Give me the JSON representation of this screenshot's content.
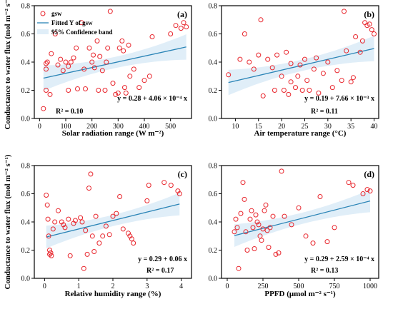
{
  "colors": {
    "points": "#e8242b",
    "fit": "#2a84b6",
    "band": "#d6e8f6"
  },
  "legend": {
    "points": "gsw",
    "fit": "Fitted Y of gsw",
    "band": "95% Confidence band",
    "placement": "top-left of panel (a)"
  },
  "chart_data": [
    {
      "type": "scatter",
      "panel": "(a)",
      "xlabel": "Solar radiation range (W m⁻²)",
      "ylabel": "Conductance to water flux (mol m⁻² s⁻¹)",
      "xlim": [
        -20,
        580
      ],
      "ylim": [
        0.0,
        0.8
      ],
      "xticks": [
        0,
        100,
        200,
        300,
        400,
        500
      ],
      "yticks": [
        0.0,
        0.2,
        0.4,
        0.6,
        0.8
      ],
      "equation": "y = 0.28 + 4.06 × 10⁻⁴ x",
      "r2": "R² = 0.10",
      "fit": {
        "intercept": 0.28,
        "slope": 0.000406
      },
      "band_halfwidth": [
        0.04,
        0.09
      ],
      "points": [
        [
          15,
          0.07
        ],
        [
          25,
          0.2
        ],
        [
          25,
          0.35
        ],
        [
          25,
          0.39
        ],
        [
          30,
          0.4
        ],
        [
          40,
          0.17
        ],
        [
          45,
          0.46
        ],
        [
          60,
          0.6
        ],
        [
          70,
          0.38
        ],
        [
          80,
          0.42
        ],
        [
          90,
          0.34
        ],
        [
          100,
          0.4
        ],
        [
          110,
          0.37
        ],
        [
          110,
          0.2
        ],
        [
          120,
          0.4
        ],
        [
          130,
          0.43
        ],
        [
          140,
          0.5
        ],
        [
          145,
          0.21
        ],
        [
          160,
          0.68
        ],
        [
          170,
          0.35
        ],
        [
          175,
          0.21
        ],
        [
          190,
          0.5
        ],
        [
          200,
          0.4
        ],
        [
          205,
          0.45
        ],
        [
          210,
          0.36
        ],
        [
          220,
          0.55
        ],
        [
          225,
          0.2
        ],
        [
          230,
          0.44
        ],
        [
          240,
          0.34
        ],
        [
          250,
          0.2
        ],
        [
          255,
          0.4
        ],
        [
          260,
          0.5
        ],
        [
          270,
          0.76
        ],
        [
          280,
          0.25
        ],
        [
          290,
          0.17
        ],
        [
          300,
          0.18
        ],
        [
          305,
          0.5
        ],
        [
          315,
          0.55
        ],
        [
          320,
          0.48
        ],
        [
          325,
          0.22
        ],
        [
          330,
          0.18
        ],
        [
          340,
          0.52
        ],
        [
          345,
          0.3
        ],
        [
          360,
          0.35
        ],
        [
          380,
          0.22
        ],
        [
          400,
          0.27
        ],
        [
          420,
          0.3
        ],
        [
          430,
          0.58
        ],
        [
          500,
          0.6
        ],
        [
          520,
          0.66
        ],
        [
          540,
          0.64
        ],
        [
          550,
          0.68
        ],
        [
          560,
          0.65
        ]
      ]
    },
    {
      "type": "scatter",
      "panel": "(b)",
      "xlabel": "Air temperature range (°C)",
      "ylabel": "",
      "xlim": [
        7,
        41
      ],
      "ylim": [
        0.0,
        0.8
      ],
      "xticks": [
        10,
        15,
        20,
        25,
        30,
        35,
        40
      ],
      "yticks": [
        0.0,
        0.2,
        0.4,
        0.6,
        0.8
      ],
      "equation": "y = 0.19 + 7.66 × 10⁻³ x",
      "r2": "R² = 0.11",
      "fit": {
        "intercept": 0.19,
        "slope": 0.00766
      },
      "band_halfwidth": [
        0.04,
        0.09
      ],
      "points": [
        [
          8.5,
          0.31
        ],
        [
          11,
          0.42
        ],
        [
          12,
          0.6
        ],
        [
          13,
          0.4
        ],
        [
          14,
          0.35
        ],
        [
          15,
          0.45
        ],
        [
          15.5,
          0.7
        ],
        [
          16,
          0.16
        ],
        [
          17,
          0.42
        ],
        [
          18,
          0.36
        ],
        [
          18.5,
          0.2
        ],
        [
          19,
          0.45
        ],
        [
          20,
          0.3
        ],
        [
          20.5,
          0.2
        ],
        [
          21,
          0.47
        ],
        [
          21.5,
          0.17
        ],
        [
          22,
          0.39
        ],
        [
          22,
          0.26
        ],
        [
          23,
          0.22
        ],
        [
          23.5,
          0.3
        ],
        [
          24,
          0.38
        ],
        [
          24.5,
          0.2
        ],
        [
          25,
          0.42
        ],
        [
          25.5,
          0.27
        ],
        [
          26,
          0.2
        ],
        [
          27,
          0.35
        ],
        [
          27.5,
          0.43
        ],
        [
          28,
          0.18
        ],
        [
          29,
          0.32
        ],
        [
          30,
          0.4
        ],
        [
          31,
          0.22
        ],
        [
          32,
          0.34
        ],
        [
          33,
          0.27
        ],
        [
          33.5,
          0.76
        ],
        [
          34,
          0.48
        ],
        [
          35,
          0.26
        ],
        [
          35.5,
          0.29
        ],
        [
          36,
          0.58
        ],
        [
          37,
          0.47
        ],
        [
          37.5,
          0.55
        ],
        [
          38,
          0.68
        ],
        [
          38.5,
          0.66
        ],
        [
          39,
          0.67
        ],
        [
          39.5,
          0.63
        ],
        [
          40,
          0.6
        ]
      ]
    },
    {
      "type": "scatter",
      "panel": "(c)",
      "xlabel": "Relative humidity range (%)",
      "ylabel": "Conductance to water flux (mol m⁻² s⁻¹)",
      "xlim": [
        -0.3,
        4.3
      ],
      "ylim": [
        0.0,
        0.8
      ],
      "xticks": [
        0,
        1,
        2,
        3,
        4
      ],
      "yticks": [
        0.0,
        0.2,
        0.4,
        0.6,
        0.8
      ],
      "equation": "y = 0.29 + 0.06 x",
      "r2": "R² = 0.17",
      "fit": {
        "intercept": 0.29,
        "slope": 0.06
      },
      "band_halfwidth": [
        0.04,
        0.08
      ],
      "points": [
        [
          0.05,
          0.59
        ],
        [
          0.08,
          0.52
        ],
        [
          0.1,
          0.42
        ],
        [
          0.12,
          0.3
        ],
        [
          0.15,
          0.2
        ],
        [
          0.15,
          0.17
        ],
        [
          0.18,
          0.18
        ],
        [
          0.2,
          0.16
        ],
        [
          0.25,
          0.35
        ],
        [
          0.3,
          0.4
        ],
        [
          0.4,
          0.48
        ],
        [
          0.5,
          0.4
        ],
        [
          0.55,
          0.38
        ],
        [
          0.6,
          0.36
        ],
        [
          0.7,
          0.42
        ],
        [
          0.75,
          0.16
        ],
        [
          0.85,
          0.39
        ],
        [
          0.9,
          0.41
        ],
        [
          1.05,
          0.43
        ],
        [
          1.1,
          0.4
        ],
        [
          1.15,
          0.07
        ],
        [
          1.2,
          0.34
        ],
        [
          1.25,
          0.17
        ],
        [
          1.3,
          0.64
        ],
        [
          1.35,
          0.74
        ],
        [
          1.4,
          0.3
        ],
        [
          1.45,
          0.19
        ],
        [
          1.5,
          0.44
        ],
        [
          1.6,
          0.25
        ],
        [
          1.7,
          0.3
        ],
        [
          1.8,
          0.37
        ],
        [
          1.9,
          0.31
        ],
        [
          2.0,
          0.44
        ],
        [
          2.1,
          0.46
        ],
        [
          2.2,
          0.58
        ],
        [
          2.3,
          0.35
        ],
        [
          2.45,
          0.32
        ],
        [
          2.5,
          0.3
        ],
        [
          2.55,
          0.28
        ],
        [
          2.6,
          0.25
        ],
        [
          3.0,
          0.55
        ],
        [
          3.05,
          0.66
        ],
        [
          3.5,
          0.68
        ],
        [
          3.7,
          0.66
        ],
        [
          3.9,
          0.62
        ],
        [
          3.95,
          0.6
        ]
      ]
    },
    {
      "type": "scatter",
      "panel": "(d)",
      "xlabel": "PPFD (μmol m⁻² s⁻¹)",
      "ylabel": "",
      "xlim": [
        -40,
        1060
      ],
      "ylim": [
        0.0,
        0.8
      ],
      "xticks": [
        0,
        250,
        500,
        750,
        1000
      ],
      "yticks": [
        0.0,
        0.2,
        0.4,
        0.6,
        0.8
      ],
      "equation": "y = 0.29 + 2.59 × 10⁻⁴ x",
      "r2": "R² = 0.13",
      "fit": {
        "intercept": 0.29,
        "slope": 0.000259
      },
      "band_halfwidth": [
        0.04,
        0.08
      ],
      "points": [
        [
          50,
          0.33
        ],
        [
          60,
          0.42
        ],
        [
          70,
          0.36
        ],
        [
          80,
          0.07
        ],
        [
          95,
          0.46
        ],
        [
          110,
          0.68
        ],
        [
          120,
          0.56
        ],
        [
          130,
          0.33
        ],
        [
          140,
          0.2
        ],
        [
          160,
          0.42
        ],
        [
          170,
          0.48
        ],
        [
          180,
          0.36
        ],
        [
          190,
          0.21
        ],
        [
          200,
          0.45
        ],
        [
          210,
          0.4
        ],
        [
          220,
          0.38
        ],
        [
          230,
          0.3
        ],
        [
          240,
          0.27
        ],
        [
          250,
          0.35
        ],
        [
          260,
          0.48
        ],
        [
          270,
          0.52
        ],
        [
          280,
          0.34
        ],
        [
          290,
          0.22
        ],
        [
          300,
          0.36
        ],
        [
          320,
          0.44
        ],
        [
          340,
          0.17
        ],
        [
          360,
          0.18
        ],
        [
          380,
          0.76
        ],
        [
          400,
          0.44
        ],
        [
          450,
          0.38
        ],
        [
          500,
          0.5
        ],
        [
          550,
          0.3
        ],
        [
          600,
          0.25
        ],
        [
          650,
          0.58
        ],
        [
          700,
          0.26
        ],
        [
          750,
          0.36
        ],
        [
          850,
          0.68
        ],
        [
          880,
          0.66
        ],
        [
          950,
          0.6
        ],
        [
          980,
          0.63
        ],
        [
          1000,
          0.62
        ]
      ]
    }
  ]
}
